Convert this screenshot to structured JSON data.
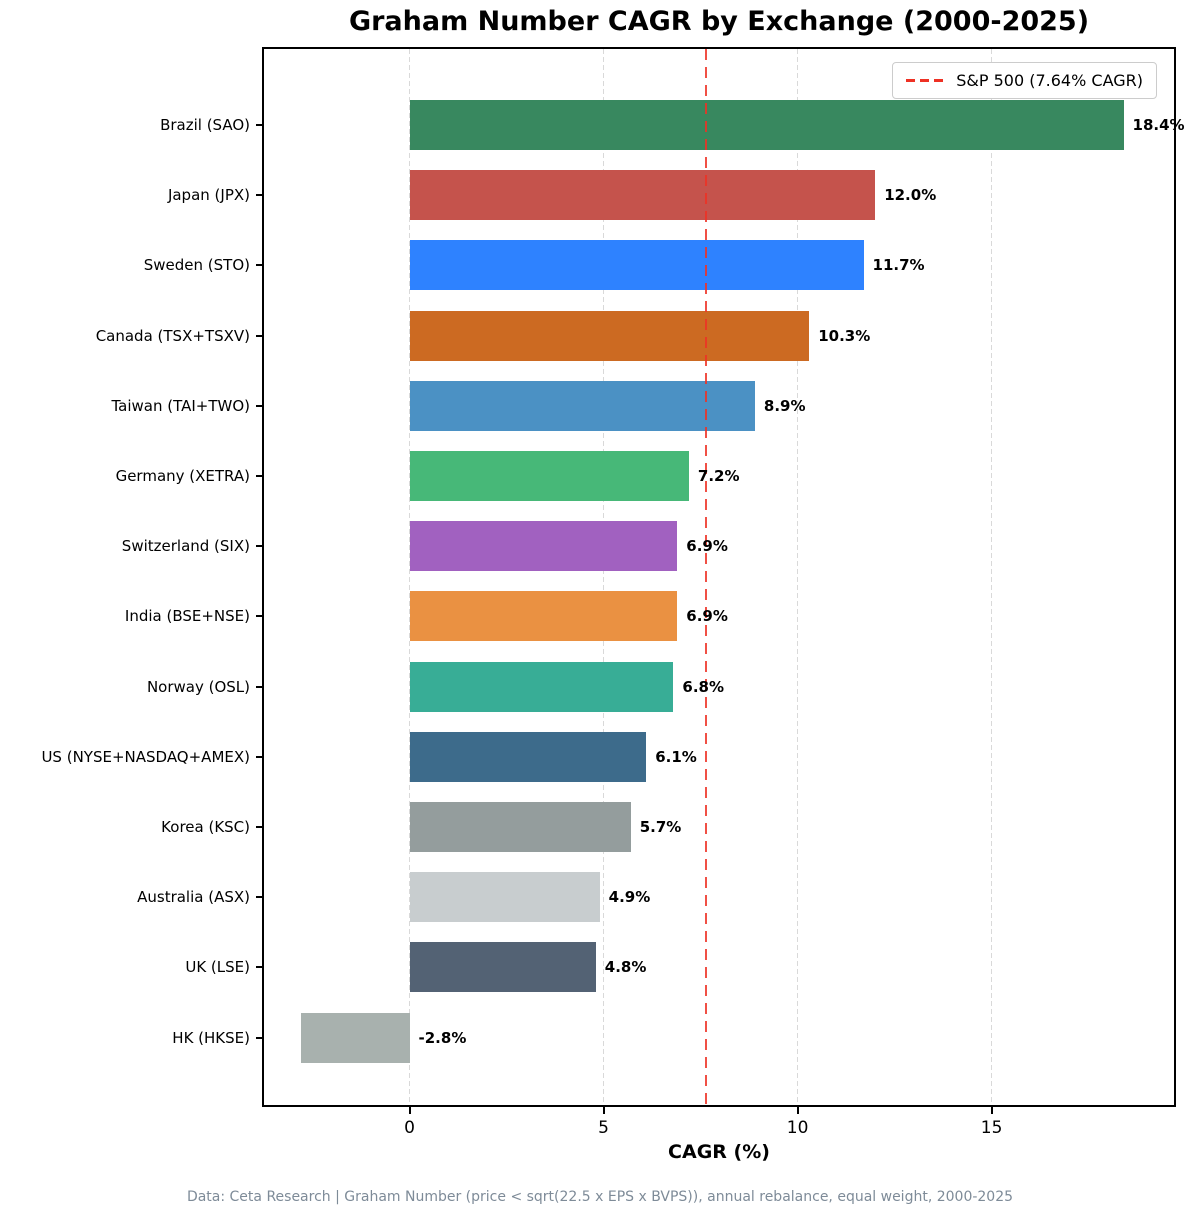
{
  "chart_data": {
    "type": "bar",
    "orientation": "horizontal",
    "title": "Graham Number CAGR by Exchange (2000-2025)",
    "xlabel": "CAGR (%)",
    "categories": [
      "Brazil (SAO)",
      "Japan (JPX)",
      "Sweden (STO)",
      "Canada (TSX+TSXV)",
      "Taiwan (TAI+TWO)",
      "Germany (XETRA)",
      "Switzerland (SIX)",
      "India (BSE+NSE)",
      "Norway (OSL)",
      "US (NYSE+NASDAQ+AMEX)",
      "Korea (KSC)",
      "Australia (ASX)",
      "UK (LSE)",
      "HK (HKSE)"
    ],
    "values": [
      18.4,
      12.0,
      11.7,
      10.3,
      8.9,
      7.2,
      6.9,
      6.9,
      6.8,
      6.1,
      5.7,
      4.9,
      4.8,
      -2.8
    ],
    "value_labels": [
      "18.4%",
      "12.0%",
      "11.7%",
      "10.3%",
      "8.9%",
      "7.2%",
      "6.9%",
      "6.9%",
      "6.8%",
      "6.1%",
      "5.7%",
      "4.9%",
      "4.8%",
      "-2.8%"
    ],
    "bar_colors": [
      "#38885f",
      "#c5534c",
      "#2e82ff",
      "#cc6a22",
      "#4b91c4",
      "#47b878",
      "#a161c0",
      "#ea9142",
      "#38ad96",
      "#3d6b8b",
      "#949d9d",
      "#c8cdcf",
      "#536274",
      "#a8b1ae"
    ],
    "x_ticks": [
      0,
      5,
      10,
      15
    ],
    "xlim": [
      -3.75,
      19.7
    ],
    "grid": "vertical-dashed",
    "legend_position": "top-right",
    "reference_line": {
      "value": 7.64,
      "color": "#ee3124",
      "style": "dashed",
      "label": "S&P 500 (7.64% CAGR)"
    },
    "footnote": "Data: Ceta Research | Graham Number (price < sqrt(22.5 x EPS x BVPS)), annual rebalance, equal weight, 2000-2025"
  }
}
